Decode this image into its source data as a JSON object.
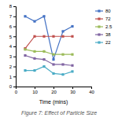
{
  "chart_data": {
    "type": "line",
    "title": "Figure 7: Effect of Particle Size",
    "xlabel": "Time (mins)",
    "x": [
      5,
      10,
      15,
      20,
      25,
      30
    ],
    "series": [
      {
        "name": "80",
        "color": "#4472C4",
        "marker": "square",
        "values": [
          7.0,
          6.5,
          7.0,
          2.7,
          5.5,
          6.0
        ]
      },
      {
        "name": "72",
        "color": "#C0504D",
        "marker": "square",
        "values": [
          3.8,
          5.0,
          5.0,
          5.0,
          5.0,
          5.0
        ]
      },
      {
        "name": "2.5",
        "color": "#9BBB59",
        "marker": "square",
        "values": [
          3.7,
          3.5,
          3.5,
          3.2,
          3.2,
          3.2
        ]
      },
      {
        "name": "38",
        "color": "#8064A2",
        "marker": "square",
        "values": [
          3.1,
          2.8,
          2.7,
          2.2,
          2.2,
          2.1
        ]
      },
      {
        "name": "22",
        "color": "#4BACC6",
        "marker": "square",
        "values": [
          1.6,
          1.6,
          2.0,
          1.3,
          1.2,
          1.5
        ]
      }
    ],
    "xlim": [
      0,
      40
    ],
    "ylim": [
      0,
      8
    ],
    "xticks": [
      0,
      10,
      20,
      30,
      40
    ],
    "yticks": [
      0,
      1,
      2,
      3,
      4,
      5,
      6,
      7,
      8
    ],
    "grid": false,
    "legend": "right"
  }
}
